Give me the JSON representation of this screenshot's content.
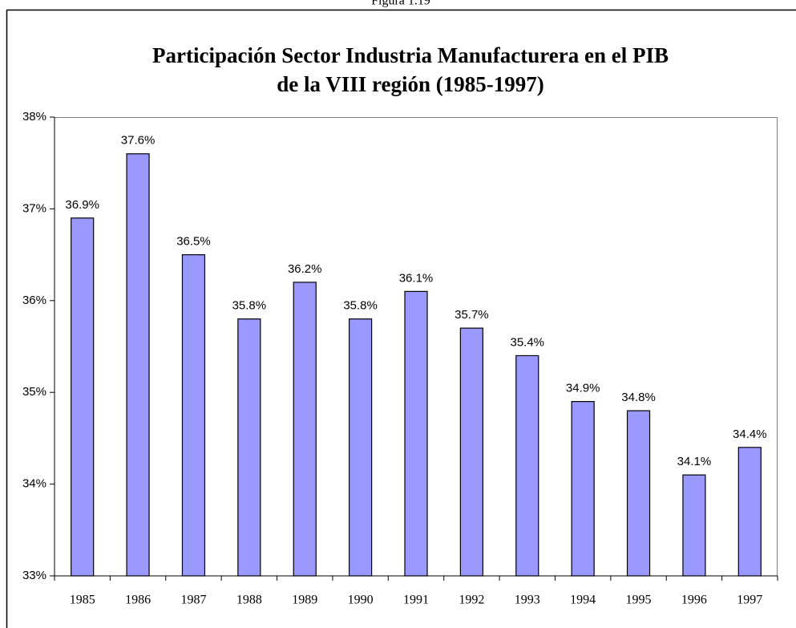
{
  "caption": "Figura 1.19",
  "chart_data": {
    "type": "bar",
    "title": [
      "Participación Sector Industria Manufacturera en el PIB",
      "de la VIII región (1985-1997)"
    ],
    "categories": [
      "1985",
      "1986",
      "1987",
      "1988",
      "1989",
      "1990",
      "1991",
      "1992",
      "1993",
      "1994",
      "1995",
      "1996",
      "1997"
    ],
    "values": [
      36.9,
      37.6,
      36.5,
      35.8,
      36.2,
      35.8,
      36.1,
      35.7,
      35.4,
      34.9,
      34.8,
      34.1,
      34.4
    ],
    "value_labels": [
      "36.9%",
      "37.6%",
      "36.5%",
      "35.8%",
      "36.2%",
      "35.8%",
      "36.1%",
      "35.7%",
      "35.4%",
      "34.9%",
      "34.8%",
      "34.1%",
      "34.4%"
    ],
    "color": "#9999ff",
    "ylim": [
      33,
      38
    ],
    "yticks": [
      {
        "value": 33,
        "label": "33%"
      },
      {
        "value": 34,
        "label": "34%"
      },
      {
        "value": 35,
        "label": "35%"
      },
      {
        "value": 36,
        "label": "36%"
      },
      {
        "value": 37,
        "label": "37%"
      },
      {
        "value": 38,
        "label": "38%"
      }
    ],
    "grid": false
  }
}
